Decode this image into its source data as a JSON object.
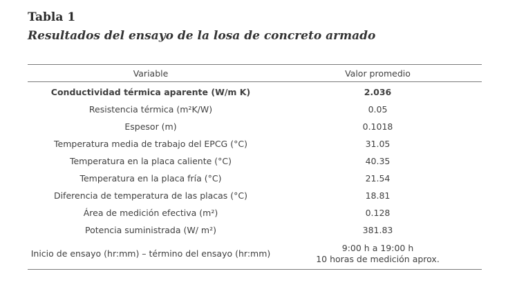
{
  "title": "Tabla 1",
  "subtitle": "Resultados del ensayo de la losa de concreto armado",
  "table": {
    "headers": [
      "Variable",
      "Valor promedio"
    ],
    "rows": [
      {
        "variable": "Conductividad térmica aparente (W/m K)",
        "value": "2.036",
        "bold": true
      },
      {
        "variable": "Resistencia térmica (m²K/W)",
        "value": "0.05"
      },
      {
        "variable": "Espesor (m)",
        "value": "0.1018"
      },
      {
        "variable": "Temperatura media de trabajo del EPCG (°C)",
        "value": "31.05"
      },
      {
        "variable": "Temperatura en la placa caliente (°C)",
        "value": "40.35"
      },
      {
        "variable": "Temperatura en la placa fría (°C)",
        "value": "21.54"
      },
      {
        "variable": "Diferencia de temperatura de las placas (°C)",
        "value": "18.81"
      },
      {
        "variable": "Área de medición efectiva (m²)",
        "value": "0.128"
      },
      {
        "variable": "Potencia suministrada (W/ m²)",
        "value": "381.83"
      },
      {
        "variable": "Inicio de ensayo (hr:mm) – término del ensayo (hr:mm)",
        "value": "9:00 h a 19:00 h",
        "value_line2": "10 horas de medición aprox."
      }
    ]
  }
}
